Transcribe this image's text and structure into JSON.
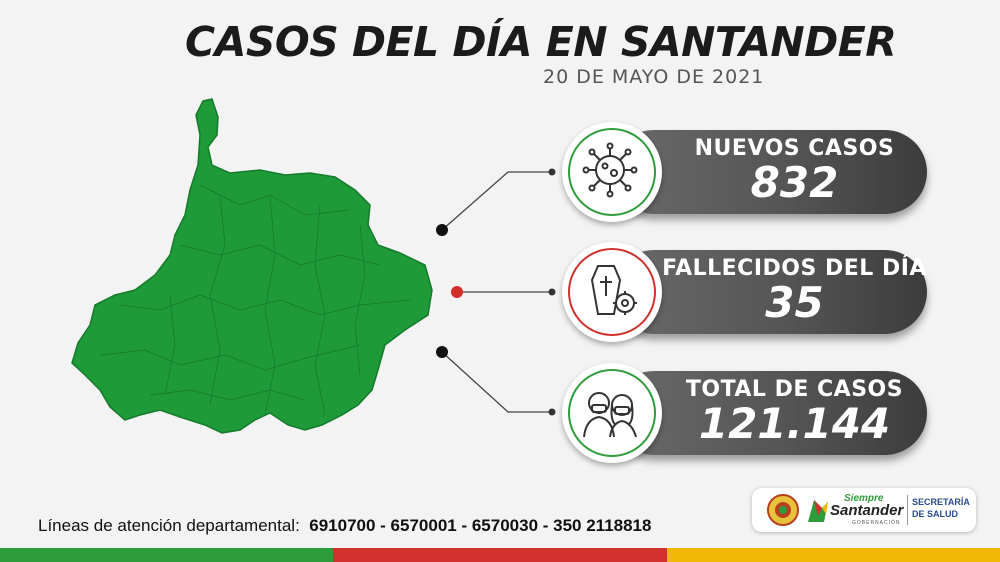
{
  "header": {
    "title": "CASOS DEL DÍA EN SANTANDER",
    "date": "20 DE MAYO DE 2021"
  },
  "stats": [
    {
      "label": "NUEVOS CASOS",
      "value": "832",
      "icon": "virus-icon",
      "accent": "#2e9c3a"
    },
    {
      "label": "FALLECIDOS DEL DÍA",
      "value": "35",
      "icon": "coffin-icon",
      "accent": "#d0312d"
    },
    {
      "label": "TOTAL DE CASOS",
      "value": "121.144",
      "icon": "masked-people-icon",
      "accent": "#2e9c3a"
    }
  ],
  "footer": {
    "label": "Líneas de atención departamental:",
    "phones": "6910700 - 6570001 - 6570030 - 350 2118818"
  },
  "logo": {
    "brand_top": "Siempre",
    "brand": "Santander",
    "sub": "GOBERNACIÓN",
    "dept_line1": "SECRETARÍA",
    "dept_line2": "DE SALUD"
  },
  "colors": {
    "map_green": "#1e9a38",
    "stripe": [
      "#2e9c3a",
      "#d0312d",
      "#f2b705"
    ]
  }
}
